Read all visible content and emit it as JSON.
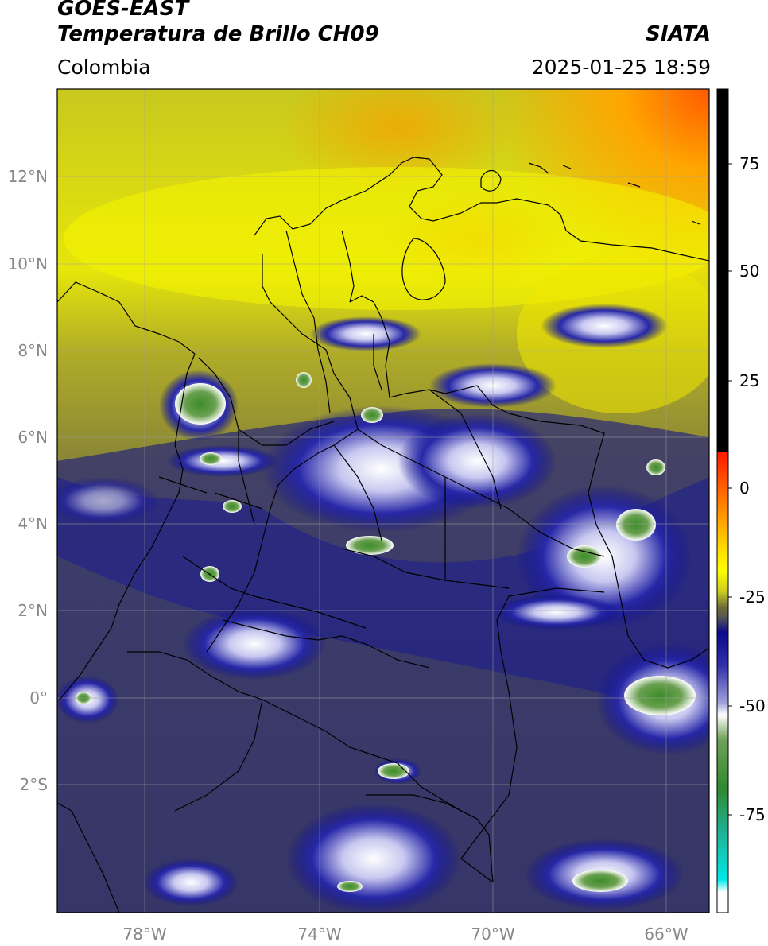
{
  "header": {
    "satellite": "GOES-EAST",
    "product": "Temperatura de Brillo CH09",
    "region": "Colombia",
    "agency": "SIATA",
    "datetime": "2025-01-25 18:59"
  },
  "map": {
    "lat_ticks": [
      "12°N",
      "10°N",
      "8°N",
      "6°N",
      "4°N",
      "2°N",
      "0°",
      "2°S"
    ],
    "lon_ticks": [
      "78°W",
      "74°W",
      "70°W",
      "66°W"
    ],
    "lon_range": [
      -80,
      -65
    ],
    "lat_range": [
      -5,
      14
    ],
    "gridlines": true
  },
  "colorbar": {
    "ticks": [
      "75",
      "50",
      "25",
      "0",
      "-25",
      "-50",
      "-75"
    ],
    "colors": {
      "warm_black": "#000000",
      "red": "#ff2200",
      "orange": "#ff9900",
      "yellow": "#ffff00",
      "olive": "#6b6b3a",
      "navy": "#0a0a8c",
      "white": "#ffffff",
      "green": "#3c8c28",
      "cyan": "#00e0e0"
    }
  }
}
